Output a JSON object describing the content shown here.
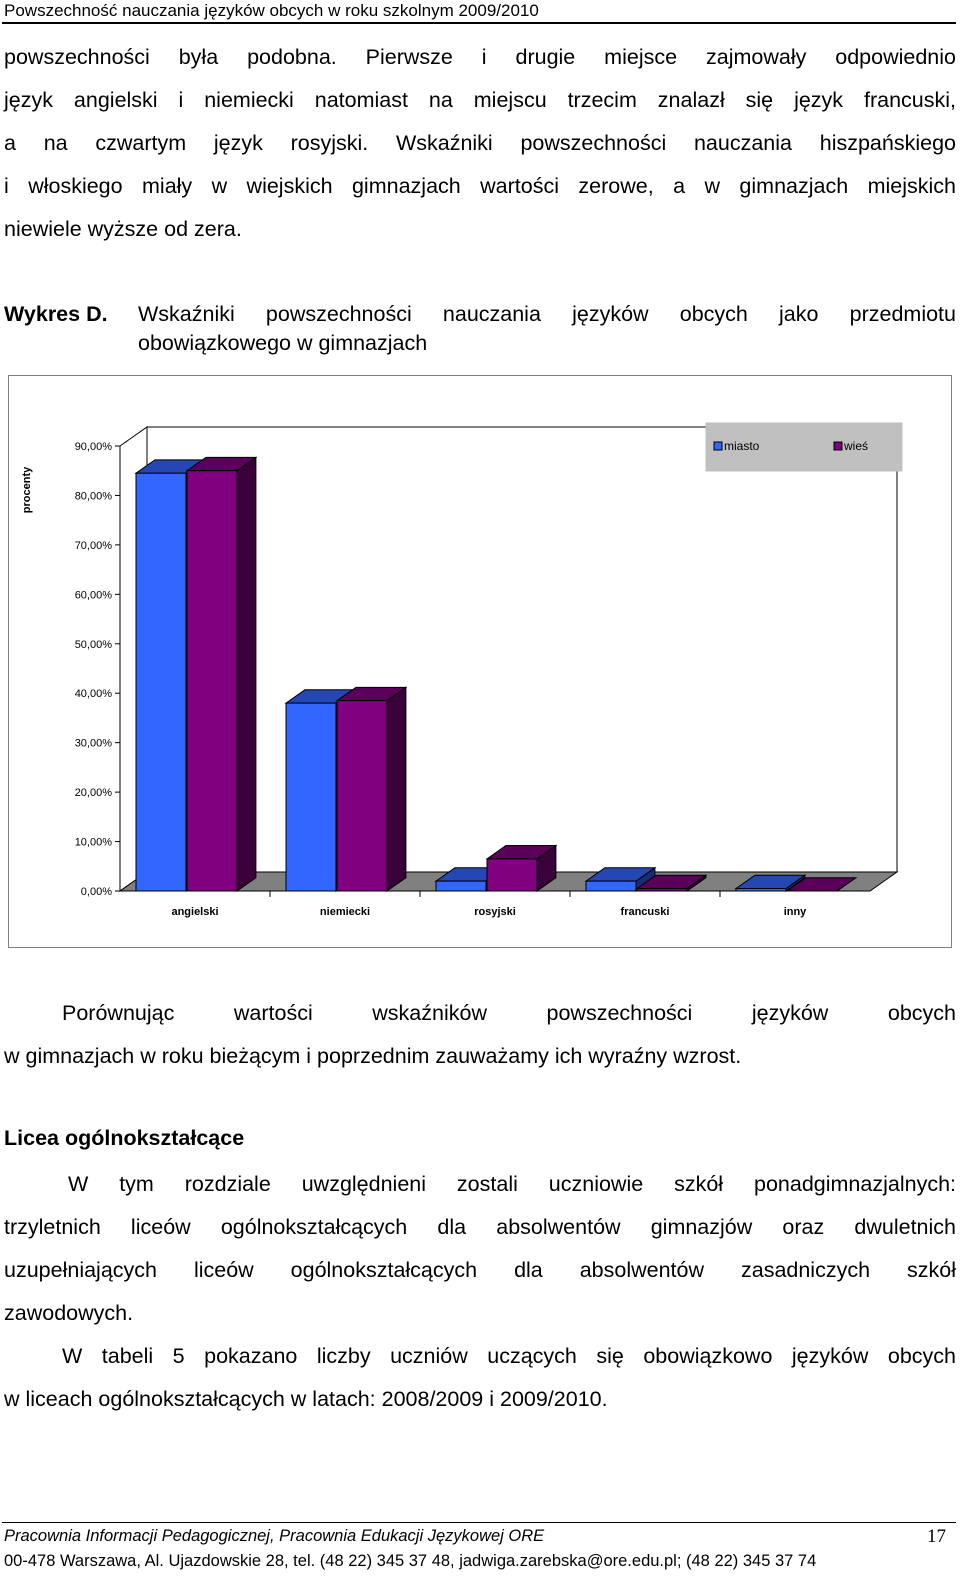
{
  "header": {
    "title": "Powszechność nauczania języków obcych w roku szkolnym 2009/2010"
  },
  "intro": {
    "lines": [
      "powszechności była podobna. Pierwsze i drugie miejsce zajmowały odpowiednio",
      "język angielski i niemiecki natomiast na miejscu trzecim znalazł się język francuski,",
      "a na czwartym język rosyjski. Wskaźniki powszechności nauczania hiszpańskiego",
      "i włoskiego miały w wiejskich gimnazjach wartości zerowe, a w gimnazjach miejskich",
      "niewiele wyższe od zera."
    ]
  },
  "caption": {
    "label": "Wykres D.",
    "text": "Wskaźniki powszechności nauczania języków obcych jako przedmiotu obowiązkowego w gimnazjach"
  },
  "chart_data": {
    "type": "bar",
    "title": "",
    "xlabel": "",
    "ylabel": "procenty",
    "categories": [
      "angielski",
      "niemiecki",
      "rosyjski",
      "francuski",
      "inny"
    ],
    "series": [
      {
        "name": "miasto",
        "color": "#3366ff",
        "values": [
          0.845,
          0.38,
          0.02,
          0.02,
          0.005
        ]
      },
      {
        "name": "wieś",
        "color": "#800080",
        "values": [
          0.85,
          0.385,
          0.065,
          0.005,
          0.0
        ]
      }
    ],
    "ylim": [
      0,
      0.9
    ],
    "yticks": [
      "0,00%",
      "10,00%",
      "20,00%",
      "30,00%",
      "40,00%",
      "50,00%",
      "60,00%",
      "70,00%",
      "80,00%",
      "90,00%"
    ],
    "legend_position": "top-right",
    "grid": false,
    "style": "3d"
  },
  "after_chart": {
    "lines": [
      "Porównując wartości wskaźników powszechności języków obcych",
      "w gimnazjach w roku bieżącym i poprzednim zauważamy ich wyraźny wzrost."
    ]
  },
  "section": {
    "heading": "Licea ogólnokształcące",
    "p1_lines": [
      "W tym rozdziale uwzględnieni zostali uczniowie szkół ponadgimnazjalnych:",
      "trzyletnich liceów ogólnokształcących dla absolwentów gimnazjów oraz dwuletnich",
      "uzupełniających liceów ogólnokształcących dla absolwentów zasadniczych szkół",
      "zawodowych."
    ],
    "p2_lines": [
      "W tabeli 5 pokazano liczby uczniów uczących się obowiązkowo języków obcych",
      "w liceach ogólnokształcących w latach: 2008/2009 i 2009/2010."
    ]
  },
  "footer": {
    "line1": "Pracownia Informacji Pedagogicznej, Pracownia Edukacji Językowej ORE",
    "line2": "00-478 Warszawa, Al. Ujazdowskie 28, tel. (48 22) 345 37 48, jadwiga.zarebska@ore.edu.pl; (48 22) 345 37 74",
    "page_number": "17"
  }
}
